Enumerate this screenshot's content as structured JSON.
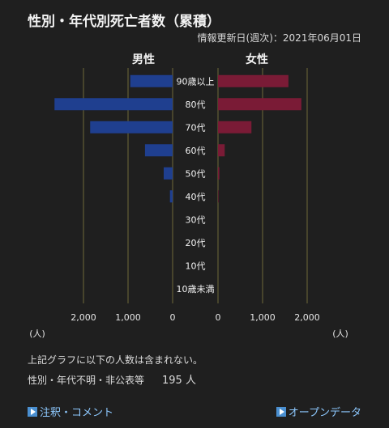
{
  "title": "性別・年代別死亡者数（累積）",
  "updated": "情報更新日(週次)：2021年06月01日",
  "chart_data": {
    "type": "bar",
    "orientation": "horizontal-butterfly",
    "categories": [
      "90歳以上",
      "80代",
      "70代",
      "60代",
      "50代",
      "40代",
      "30代",
      "20代",
      "10代",
      "10歳未満"
    ],
    "series": [
      {
        "name": "男性",
        "color": "#1f3f8f",
        "values": [
          950,
          2650,
          1850,
          620,
          200,
          60,
          0,
          0,
          0,
          0
        ]
      },
      {
        "name": "女性",
        "color": "#7a1b36",
        "values": [
          1580,
          1870,
          750,
          150,
          30,
          10,
          0,
          0,
          0,
          0
        ]
      }
    ],
    "x_ticks": [
      "2,000",
      "1,000",
      "0"
    ],
    "xlim": [
      0,
      2650
    ],
    "unit_label": "(人)",
    "grid": true
  },
  "note1": "上記グラフに以下の人数は含まれない。",
  "note2_label": "性別・年代不明・非公表等",
  "note2_value": "195 人",
  "links": {
    "left": "注釈・コメント",
    "right": "オープンデータ"
  }
}
